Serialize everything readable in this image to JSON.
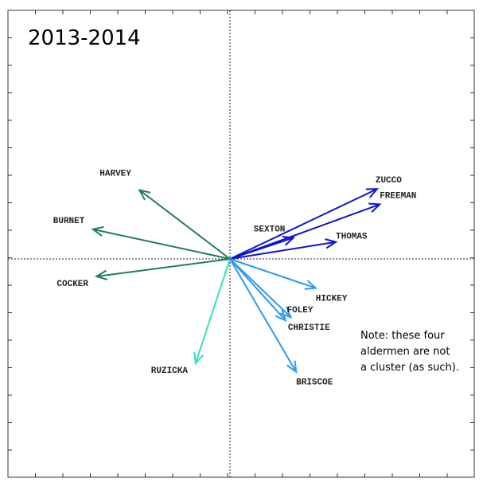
{
  "chart_data": {
    "type": "biplot",
    "title": "2013-2014",
    "grid": false,
    "axis_lines": "dashed-through-origin",
    "xlim": [
      -4.2,
      4.6
    ],
    "ylim": [
      -4.0,
      4.7
    ],
    "vectors": [
      {
        "label": "HARVEY",
        "x": -1.71,
        "y": 1.3,
        "color": "#1f7f55"
      },
      {
        "label": "BURNET",
        "x": -2.59,
        "y": 0.56,
        "color": "#1f7f55"
      },
      {
        "label": "COCKER",
        "x": -2.52,
        "y": -0.33,
        "color": "#1f7f55"
      },
      {
        "label": "RUZICKA",
        "x": -0.65,
        "y": -1.97,
        "color": "#33e0c0"
      },
      {
        "label": "ZUCCO",
        "x": 2.78,
        "y": 1.32,
        "color": "#0d16c8"
      },
      {
        "label": "FREEMAN",
        "x": 2.83,
        "y": 1.03,
        "color": "#0d16c8"
      },
      {
        "label": "SEXTON",
        "x": 1.2,
        "y": 0.4,
        "color": "#0d16c8"
      },
      {
        "label": "THOMAS",
        "x": 2.0,
        "y": 0.32,
        "color": "#0d16c8"
      },
      {
        "label": "HICKEY",
        "x": 1.62,
        "y": -0.55,
        "color": "#2a9af0"
      },
      {
        "label": "FOLEY",
        "x": 1.15,
        "y": -1.1,
        "color": "#2a9af0"
      },
      {
        "label": "CHRISTIE",
        "x": 1.05,
        "y": -1.16,
        "color": "#2a9af0"
      },
      {
        "label": "BRISCOE",
        "x": 1.25,
        "y": -2.13,
        "color": "#2a9af0"
      }
    ],
    "annotation": [
      "Note: these four",
      "aldermen are not",
      "a cluster (as such)."
    ]
  }
}
